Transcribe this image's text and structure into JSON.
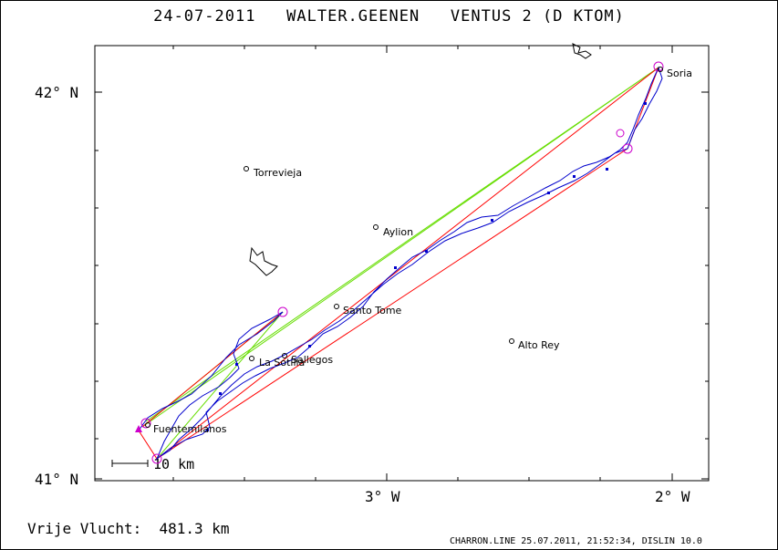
{
  "header": {
    "title": "24-07-2011   WALTER.GEENEN   VENTUS 2 (D KTOM)"
  },
  "footer": {
    "distance": "Vrije Vlucht:  481.3 km",
    "credits": "CHARRON.LINE 25.07.2011, 21:52:34, DISLIN 10.0"
  },
  "map": {
    "lat_labels": [
      "42° N",
      "41° N"
    ],
    "lon_labels": [
      "3° W",
      "2° W"
    ],
    "scale_label": "10 km",
    "towns": [
      {
        "name": "Soria"
      },
      {
        "name": "Torrevieja"
      },
      {
        "name": "Aylion"
      },
      {
        "name": "Santo Tome"
      },
      {
        "name": "Alto Rey"
      },
      {
        "name": "La Sotilla"
      },
      {
        "name": "Sallegos"
      },
      {
        "name": "Fuentemilanos"
      }
    ]
  },
  "colors": {
    "track": "#0000cc",
    "triangle_red": "#ff0000",
    "free_green": "#66dd00",
    "turnpoint": "#cc00cc",
    "frame": "#000000"
  }
}
